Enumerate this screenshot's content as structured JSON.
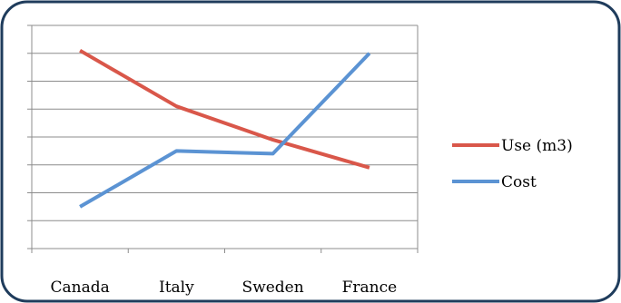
{
  "chart_data": {
    "type": "line",
    "categories": [
      "Canada",
      "Italy",
      "Sweden",
      "France"
    ],
    "series": [
      {
        "name": "Use (m3)",
        "values": [
          7.1,
          5.1,
          3.9,
          2.9
        ],
        "color": "#D9574A"
      },
      {
        "name": "Cost",
        "values": [
          1.5,
          3.5,
          3.4,
          7.0
        ],
        "color": "#5B93D3"
      }
    ],
    "ylim": [
      0,
      8
    ],
    "y_gridlines": 8,
    "ytick_labels_shown": false,
    "grid": true,
    "legend": "right",
    "title": "",
    "xlabel": "",
    "ylabel": "",
    "frame_border_color": "#1F3C5C"
  }
}
